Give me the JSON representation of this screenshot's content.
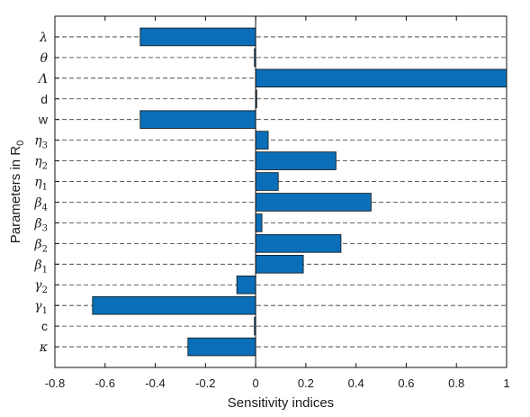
{
  "chart_data": {
    "type": "bar",
    "orientation": "horizontal",
    "xlabel": "Sensitivity indices",
    "ylabel": "Parameters in R",
    "ylabel_subscript": "0",
    "xlim": [
      -0.8,
      1
    ],
    "x_ticks": [
      "-0.8",
      "-0.6",
      "-0.4",
      "-0.2",
      "0",
      "0.2",
      "0.4",
      "0.6",
      "0.8",
      "1"
    ],
    "grid": "horizontal dashed",
    "bar_color": "#0a6fb8",
    "categories": [
      {
        "base": "λ",
        "sub": "",
        "math": true
      },
      {
        "base": "θ",
        "sub": "",
        "math": true
      },
      {
        "base": "Λ",
        "sub": "",
        "math": true
      },
      {
        "base": "d",
        "sub": "",
        "math": false
      },
      {
        "base": "w",
        "sub": "",
        "math": false
      },
      {
        "base": "η",
        "sub": "3",
        "math": true
      },
      {
        "base": "η",
        "sub": "2",
        "math": true
      },
      {
        "base": "η",
        "sub": "1",
        "math": true
      },
      {
        "base": "β",
        "sub": "4",
        "math": true
      },
      {
        "base": "β",
        "sub": "3",
        "math": true
      },
      {
        "base": "β",
        "sub": "2",
        "math": true
      },
      {
        "base": "β",
        "sub": "1",
        "math": true
      },
      {
        "base": "γ",
        "sub": "2",
        "math": true
      },
      {
        "base": "γ",
        "sub": "1",
        "math": true
      },
      {
        "base": "c",
        "sub": "",
        "math": false
      },
      {
        "base": "κ",
        "sub": "",
        "math": true
      }
    ],
    "values": [
      -0.46,
      -0.005,
      1.0,
      0.0,
      -0.46,
      0.05,
      0.32,
      0.09,
      0.46,
      0.025,
      0.34,
      0.19,
      -0.075,
      -0.65,
      -0.005,
      -0.27
    ]
  }
}
